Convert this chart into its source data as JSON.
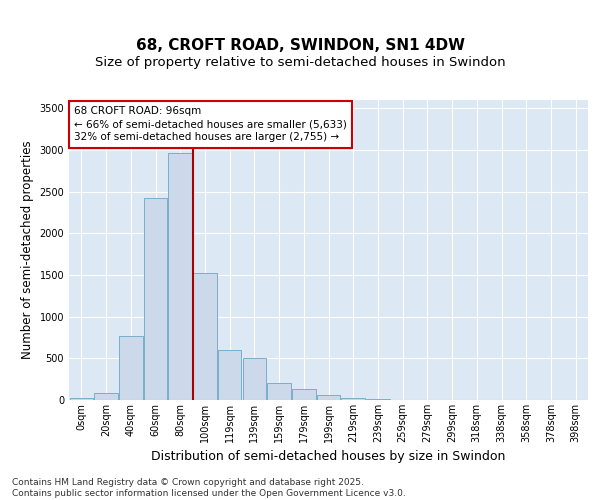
{
  "title_line1": "68, CROFT ROAD, SWINDON, SN1 4DW",
  "title_line2": "Size of property relative to semi-detached houses in Swindon",
  "xlabel": "Distribution of semi-detached houses by size in Swindon",
  "ylabel": "Number of semi-detached properties",
  "categories": [
    "0sqm",
    "20sqm",
    "40sqm",
    "60sqm",
    "80sqm",
    "100sqm",
    "119sqm",
    "139sqm",
    "159sqm",
    "179sqm",
    "199sqm",
    "219sqm",
    "239sqm",
    "259sqm",
    "279sqm",
    "299sqm",
    "318sqm",
    "338sqm",
    "358sqm",
    "378sqm",
    "398sqm"
  ],
  "values": [
    20,
    80,
    770,
    2430,
    2970,
    1520,
    600,
    510,
    210,
    130,
    60,
    30,
    10,
    5,
    2,
    2,
    1,
    0,
    0,
    0,
    0
  ],
  "bar_color": "#ccd9ea",
  "bar_edge_color": "#7aaecb",
  "vline_color": "#aa0000",
  "vline_x_index": 4.5,
  "annotation_text": "68 CROFT ROAD: 96sqm\n← 66% of semi-detached houses are smaller (5,633)\n32% of semi-detached houses are larger (2,755) →",
  "annotation_box_facecolor": "#ffffff",
  "annotation_box_edgecolor": "#cc0000",
  "ylim": [
    0,
    3600
  ],
  "yticks": [
    0,
    500,
    1000,
    1500,
    2000,
    2500,
    3000,
    3500
  ],
  "bg_color": "#ffffff",
  "plot_bg_color": "#dde8f5",
  "grid_color": "#ffffff",
  "title_fontsize": 11,
  "subtitle_fontsize": 9.5,
  "tick_fontsize": 7,
  "ylabel_fontsize": 8.5,
  "xlabel_fontsize": 9,
  "annotation_fontsize": 7.5,
  "footer_text": "Contains HM Land Registry data © Crown copyright and database right 2025.\nContains public sector information licensed under the Open Government Licence v3.0.",
  "footer_fontsize": 6.5
}
